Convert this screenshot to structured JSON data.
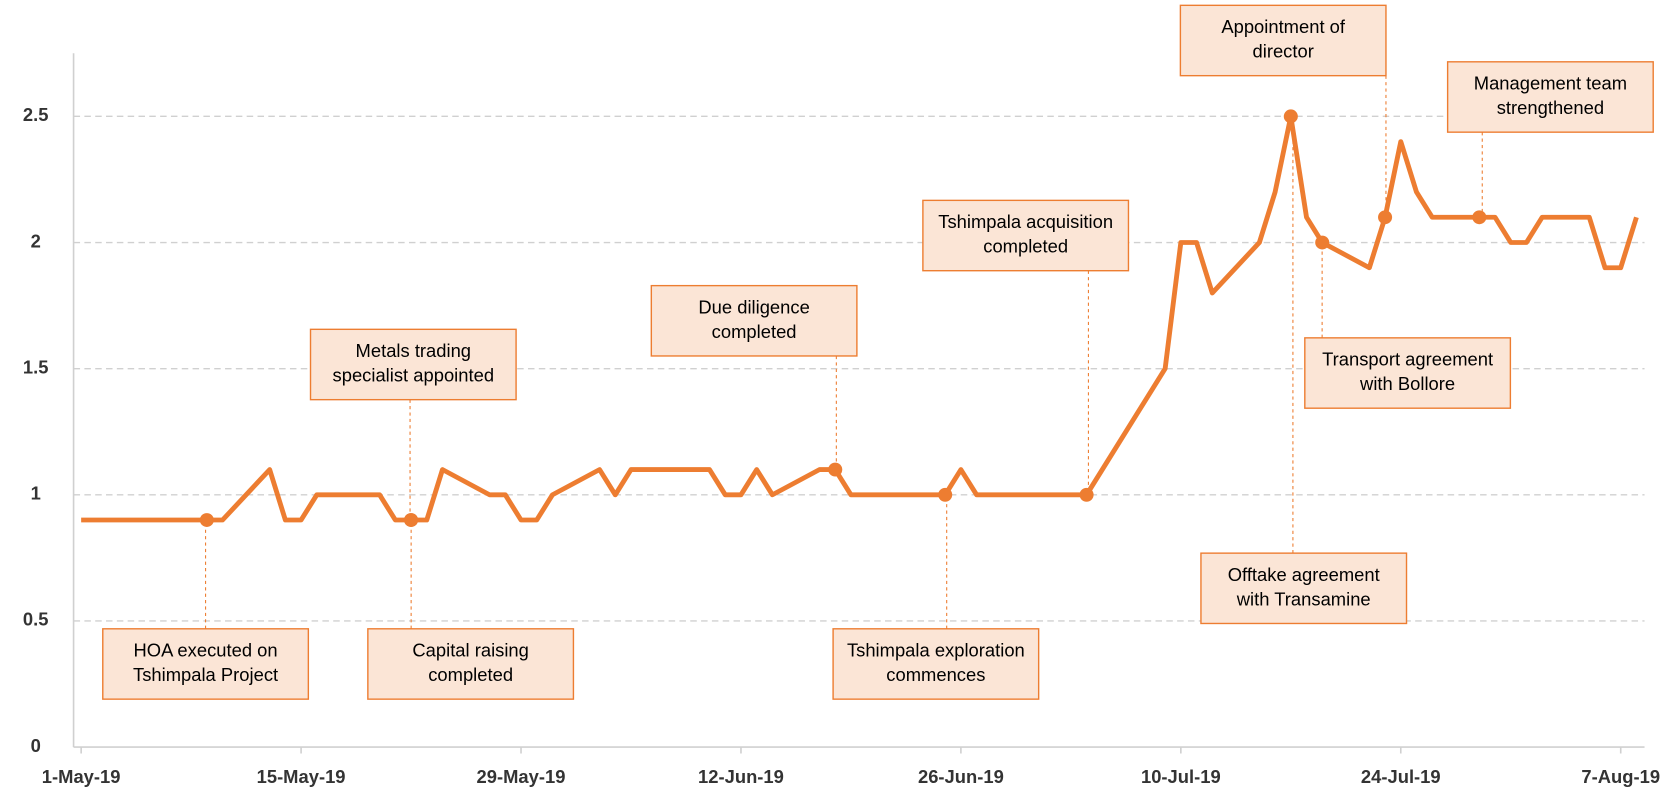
{
  "chart_data": {
    "type": "line",
    "x": [
      "2019-05-01",
      "2019-05-09",
      "2019-05-10",
      "2019-05-13",
      "2019-05-14",
      "2019-05-15",
      "2019-05-16",
      "2019-05-20",
      "2019-05-21",
      "2019-05-22",
      "2019-05-23",
      "2019-05-24",
      "2019-05-27",
      "2019-05-28",
      "2019-05-29",
      "2019-05-30",
      "2019-05-31",
      "2019-06-03",
      "2019-06-04",
      "2019-06-05",
      "2019-06-10",
      "2019-06-11",
      "2019-06-12",
      "2019-06-13",
      "2019-06-14",
      "2019-06-17",
      "2019-06-18",
      "2019-06-19",
      "2019-06-25",
      "2019-06-26",
      "2019-06-27",
      "2019-07-04",
      "2019-07-09",
      "2019-07-10",
      "2019-07-11",
      "2019-07-12",
      "2019-07-15",
      "2019-07-16",
      "2019-07-17",
      "2019-07-18",
      "2019-07-19",
      "2019-07-22",
      "2019-07-23",
      "2019-07-24",
      "2019-07-25",
      "2019-07-26",
      "2019-07-28",
      "2019-07-29",
      "2019-07-30",
      "2019-07-31",
      "2019-08-01",
      "2019-08-02",
      "2019-08-05",
      "2019-08-06",
      "2019-08-07",
      "2019-08-08"
    ],
    "series": [
      {
        "color": "#ed7d31",
        "values": [
          0.9,
          0.9,
          0.9,
          1.1,
          0.9,
          0.9,
          1.0,
          1.0,
          0.9,
          0.9,
          0.9,
          1.1,
          1.0,
          1.0,
          0.9,
          0.9,
          1.0,
          1.1,
          1.0,
          1.1,
          1.1,
          1.0,
          1.0,
          1.1,
          1.0,
          1.1,
          1.1,
          1.0,
          1.0,
          1.1,
          1.0,
          1.0,
          1.5,
          2.0,
          2.0,
          1.8,
          2.0,
          2.2,
          2.5,
          2.1,
          2.0,
          1.9,
          2.1,
          2.4,
          2.2,
          2.1,
          2.1,
          2.1,
          2.1,
          2.0,
          2.0,
          2.1,
          2.1,
          1.9,
          1.9,
          2.1
        ]
      }
    ],
    "xlim": [
      "2019-05-01",
      "2019-08-08"
    ],
    "xticks": [
      {
        "value": "2019-05-01",
        "label": "1-May-19"
      },
      {
        "value": "2019-05-15",
        "label": "15-May-19"
      },
      {
        "value": "2019-05-29",
        "label": "29-May-19"
      },
      {
        "value": "2019-06-12",
        "label": "12-Jun-19"
      },
      {
        "value": "2019-06-26",
        "label": "26-Jun-19"
      },
      {
        "value": "2019-07-10",
        "label": "10-Jul-19"
      },
      {
        "value": "2019-07-24",
        "label": "24-Jul-19"
      },
      {
        "value": "2019-08-07",
        "label": "7-Aug-19"
      }
    ],
    "ylim": [
      0,
      2.75
    ],
    "yticks": [
      0,
      0.5,
      1,
      1.5,
      2,
      2.5
    ],
    "grid": true,
    "annotations": [
      {
        "text": [
          "HOA executed on",
          "Tshimpala Project"
        ],
        "x": "2019-05-09"
      },
      {
        "text": [
          "Metals trading",
          "specialist appointed"
        ],
        "x": "2019-05-22"
      },
      {
        "text": [
          "Capital raising",
          "completed"
        ],
        "x": "2019-05-22"
      },
      {
        "text": [
          "Due diligence",
          "completed"
        ],
        "x": "2019-06-18"
      },
      {
        "text": [
          "Tshimpala exploration",
          "commences"
        ],
        "x": "2019-06-25"
      },
      {
        "text": [
          "Tshimpala acquisition",
          "completed"
        ],
        "x": "2019-07-04"
      },
      {
        "text": [
          "Appointment of",
          "director"
        ],
        "x": "2019-07-23"
      },
      {
        "text": [
          "Offtake agreement",
          "with Transamine"
        ],
        "x": "2019-07-17"
      },
      {
        "text": [
          "Transport agreement",
          "with Bollore"
        ],
        "x": "2019-07-19"
      },
      {
        "text": [
          "Management team",
          "strengthened"
        ],
        "x": "2019-07-29"
      }
    ]
  }
}
